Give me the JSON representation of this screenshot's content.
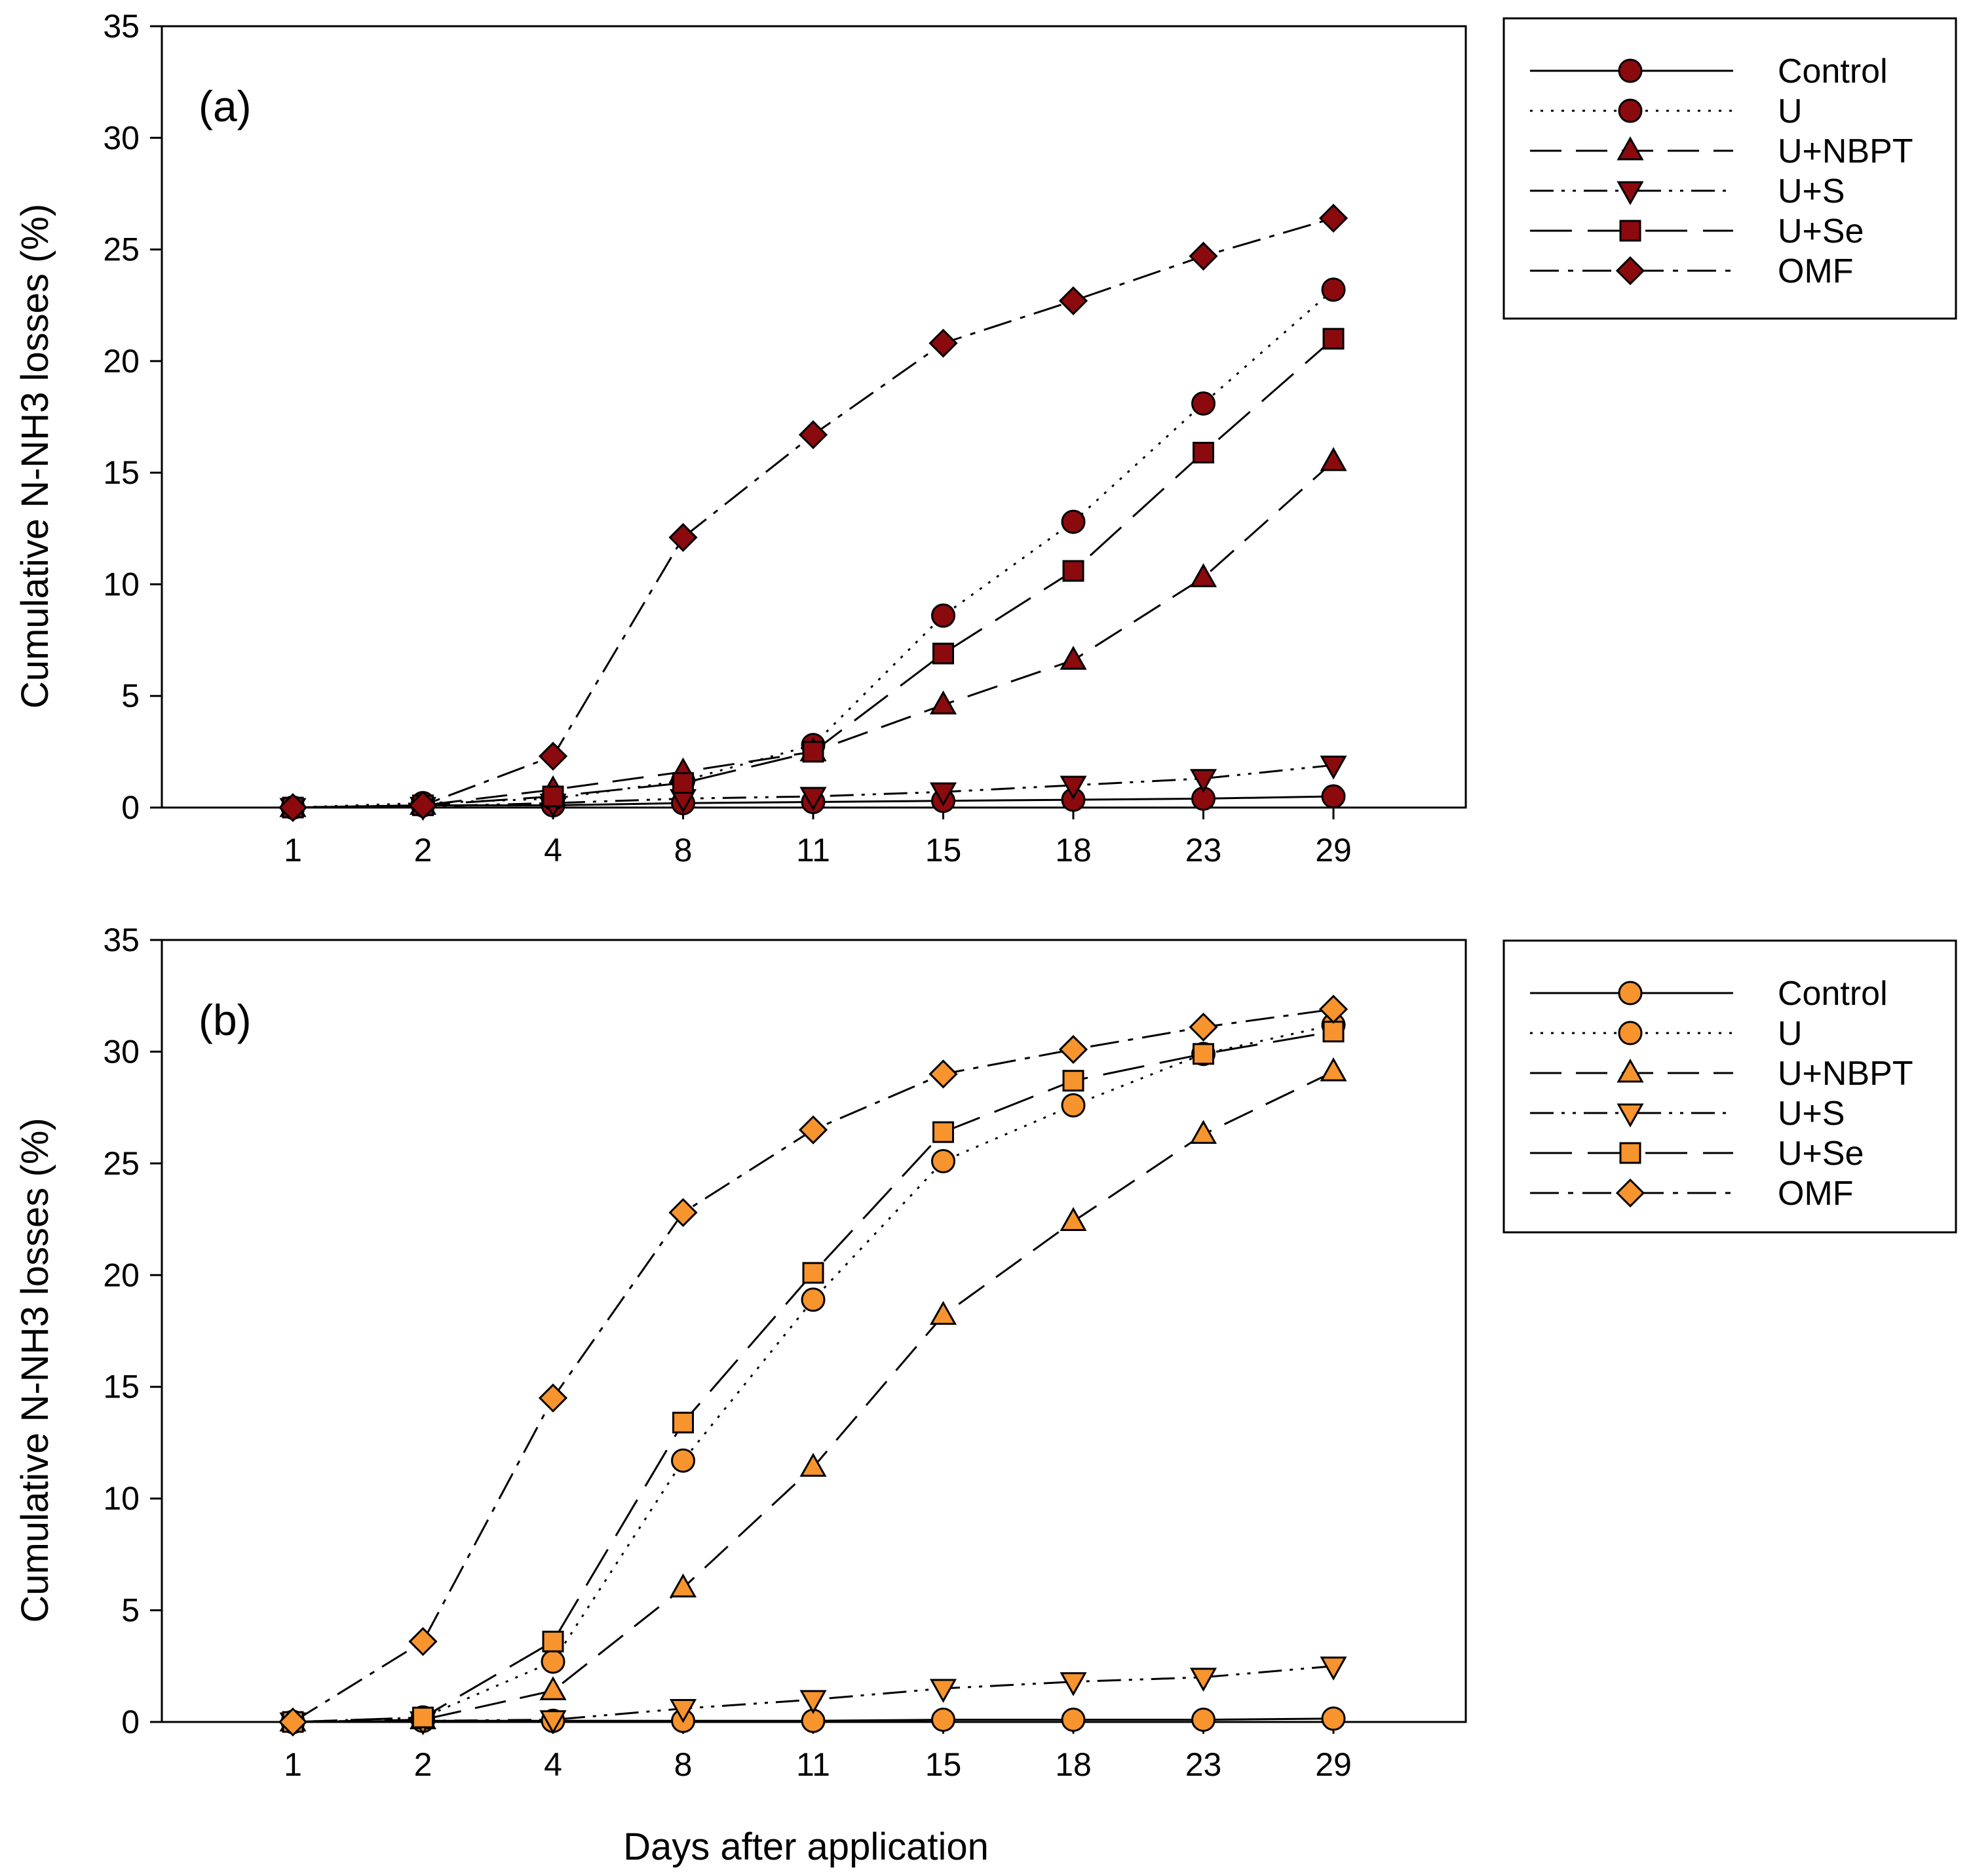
{
  "chart_data": [
    {
      "type": "line",
      "panel_label": "(a)",
      "title": "",
      "xlabel": "",
      "ylabel": "Cumulative N-NH3 losses (%)",
      "categories": [
        "1",
        "2",
        "4",
        "8",
        "11",
        "15",
        "18",
        "23",
        "29"
      ],
      "ylim": [
        0,
        35
      ],
      "yticks": [
        "0",
        "5",
        "10",
        "15",
        "20",
        "25",
        "30",
        "35"
      ],
      "marker_fill": "#8b0a0e",
      "legend_position": "right",
      "series": [
        {
          "name": "Control",
          "dash": "solid",
          "marker": "circle",
          "values": [
            0,
            0.1,
            0.1,
            0.2,
            0.25,
            0.3,
            0.35,
            0.4,
            0.5
          ]
        },
        {
          "name": "U",
          "dash": "dotted",
          "marker": "circle",
          "values": [
            0,
            0.2,
            0.4,
            1.2,
            2.8,
            8.6,
            12.8,
            18.1,
            23.2
          ]
        },
        {
          "name": "U+NBPT",
          "dash": "longdash",
          "marker": "triangle-up",
          "values": [
            0,
            0.1,
            0.8,
            1.6,
            2.5,
            4.6,
            6.6,
            10.3,
            15.5
          ]
        },
        {
          "name": "U+S",
          "dash": "dashdotdot",
          "marker": "triangle-down",
          "values": [
            0,
            0.05,
            0.2,
            0.4,
            0.5,
            0.7,
            1.0,
            1.3,
            1.9
          ]
        },
        {
          "name": "U+Se",
          "dash": "longdash2",
          "marker": "square",
          "values": [
            0,
            0.1,
            0.5,
            1.1,
            2.5,
            6.9,
            10.6,
            15.9,
            21.0
          ]
        },
        {
          "name": "OMF",
          "dash": "dashdot",
          "marker": "diamond",
          "values": [
            0,
            0.1,
            2.3,
            12.1,
            16.7,
            20.8,
            22.7,
            24.7,
            26.4
          ]
        }
      ]
    },
    {
      "type": "line",
      "panel_label": "(b)",
      "title": "",
      "xlabel": "Days after application",
      "ylabel": "Cumulative N-NH3 losses (%)",
      "categories": [
        "1",
        "2",
        "4",
        "8",
        "11",
        "15",
        "18",
        "23",
        "29"
      ],
      "ylim": [
        0,
        35
      ],
      "yticks": [
        "0",
        "5",
        "10",
        "15",
        "20",
        "25",
        "30",
        "35"
      ],
      "marker_fill": "#f7942d",
      "legend_position": "right",
      "series": [
        {
          "name": "Control",
          "dash": "solid",
          "marker": "circle",
          "values": [
            0,
            0.05,
            0.05,
            0.05,
            0.05,
            0.1,
            0.1,
            0.1,
            0.15
          ]
        },
        {
          "name": "U",
          "dash": "dotted",
          "marker": "circle",
          "values": [
            0,
            0.2,
            2.7,
            11.7,
            18.9,
            25.1,
            27.6,
            29.9,
            31.2
          ]
        },
        {
          "name": "U+NBPT",
          "dash": "longdash",
          "marker": "triangle-up",
          "values": [
            0,
            0.1,
            1.4,
            6.0,
            11.4,
            18.2,
            22.4,
            26.3,
            29.1
          ]
        },
        {
          "name": "U+S",
          "dash": "dashdotdot",
          "marker": "triangle-down",
          "values": [
            0,
            0.05,
            0.1,
            0.6,
            1.0,
            1.5,
            1.8,
            2.0,
            2.5
          ]
        },
        {
          "name": "U+Se",
          "dash": "longdash2",
          "marker": "square",
          "values": [
            0,
            0.2,
            3.6,
            13.4,
            20.1,
            26.4,
            28.7,
            29.9,
            30.9
          ]
        },
        {
          "name": "OMF",
          "dash": "dashdot",
          "marker": "diamond",
          "values": [
            0,
            3.6,
            14.5,
            22.8,
            26.5,
            29.0,
            30.1,
            31.1,
            31.9
          ]
        }
      ]
    }
  ]
}
